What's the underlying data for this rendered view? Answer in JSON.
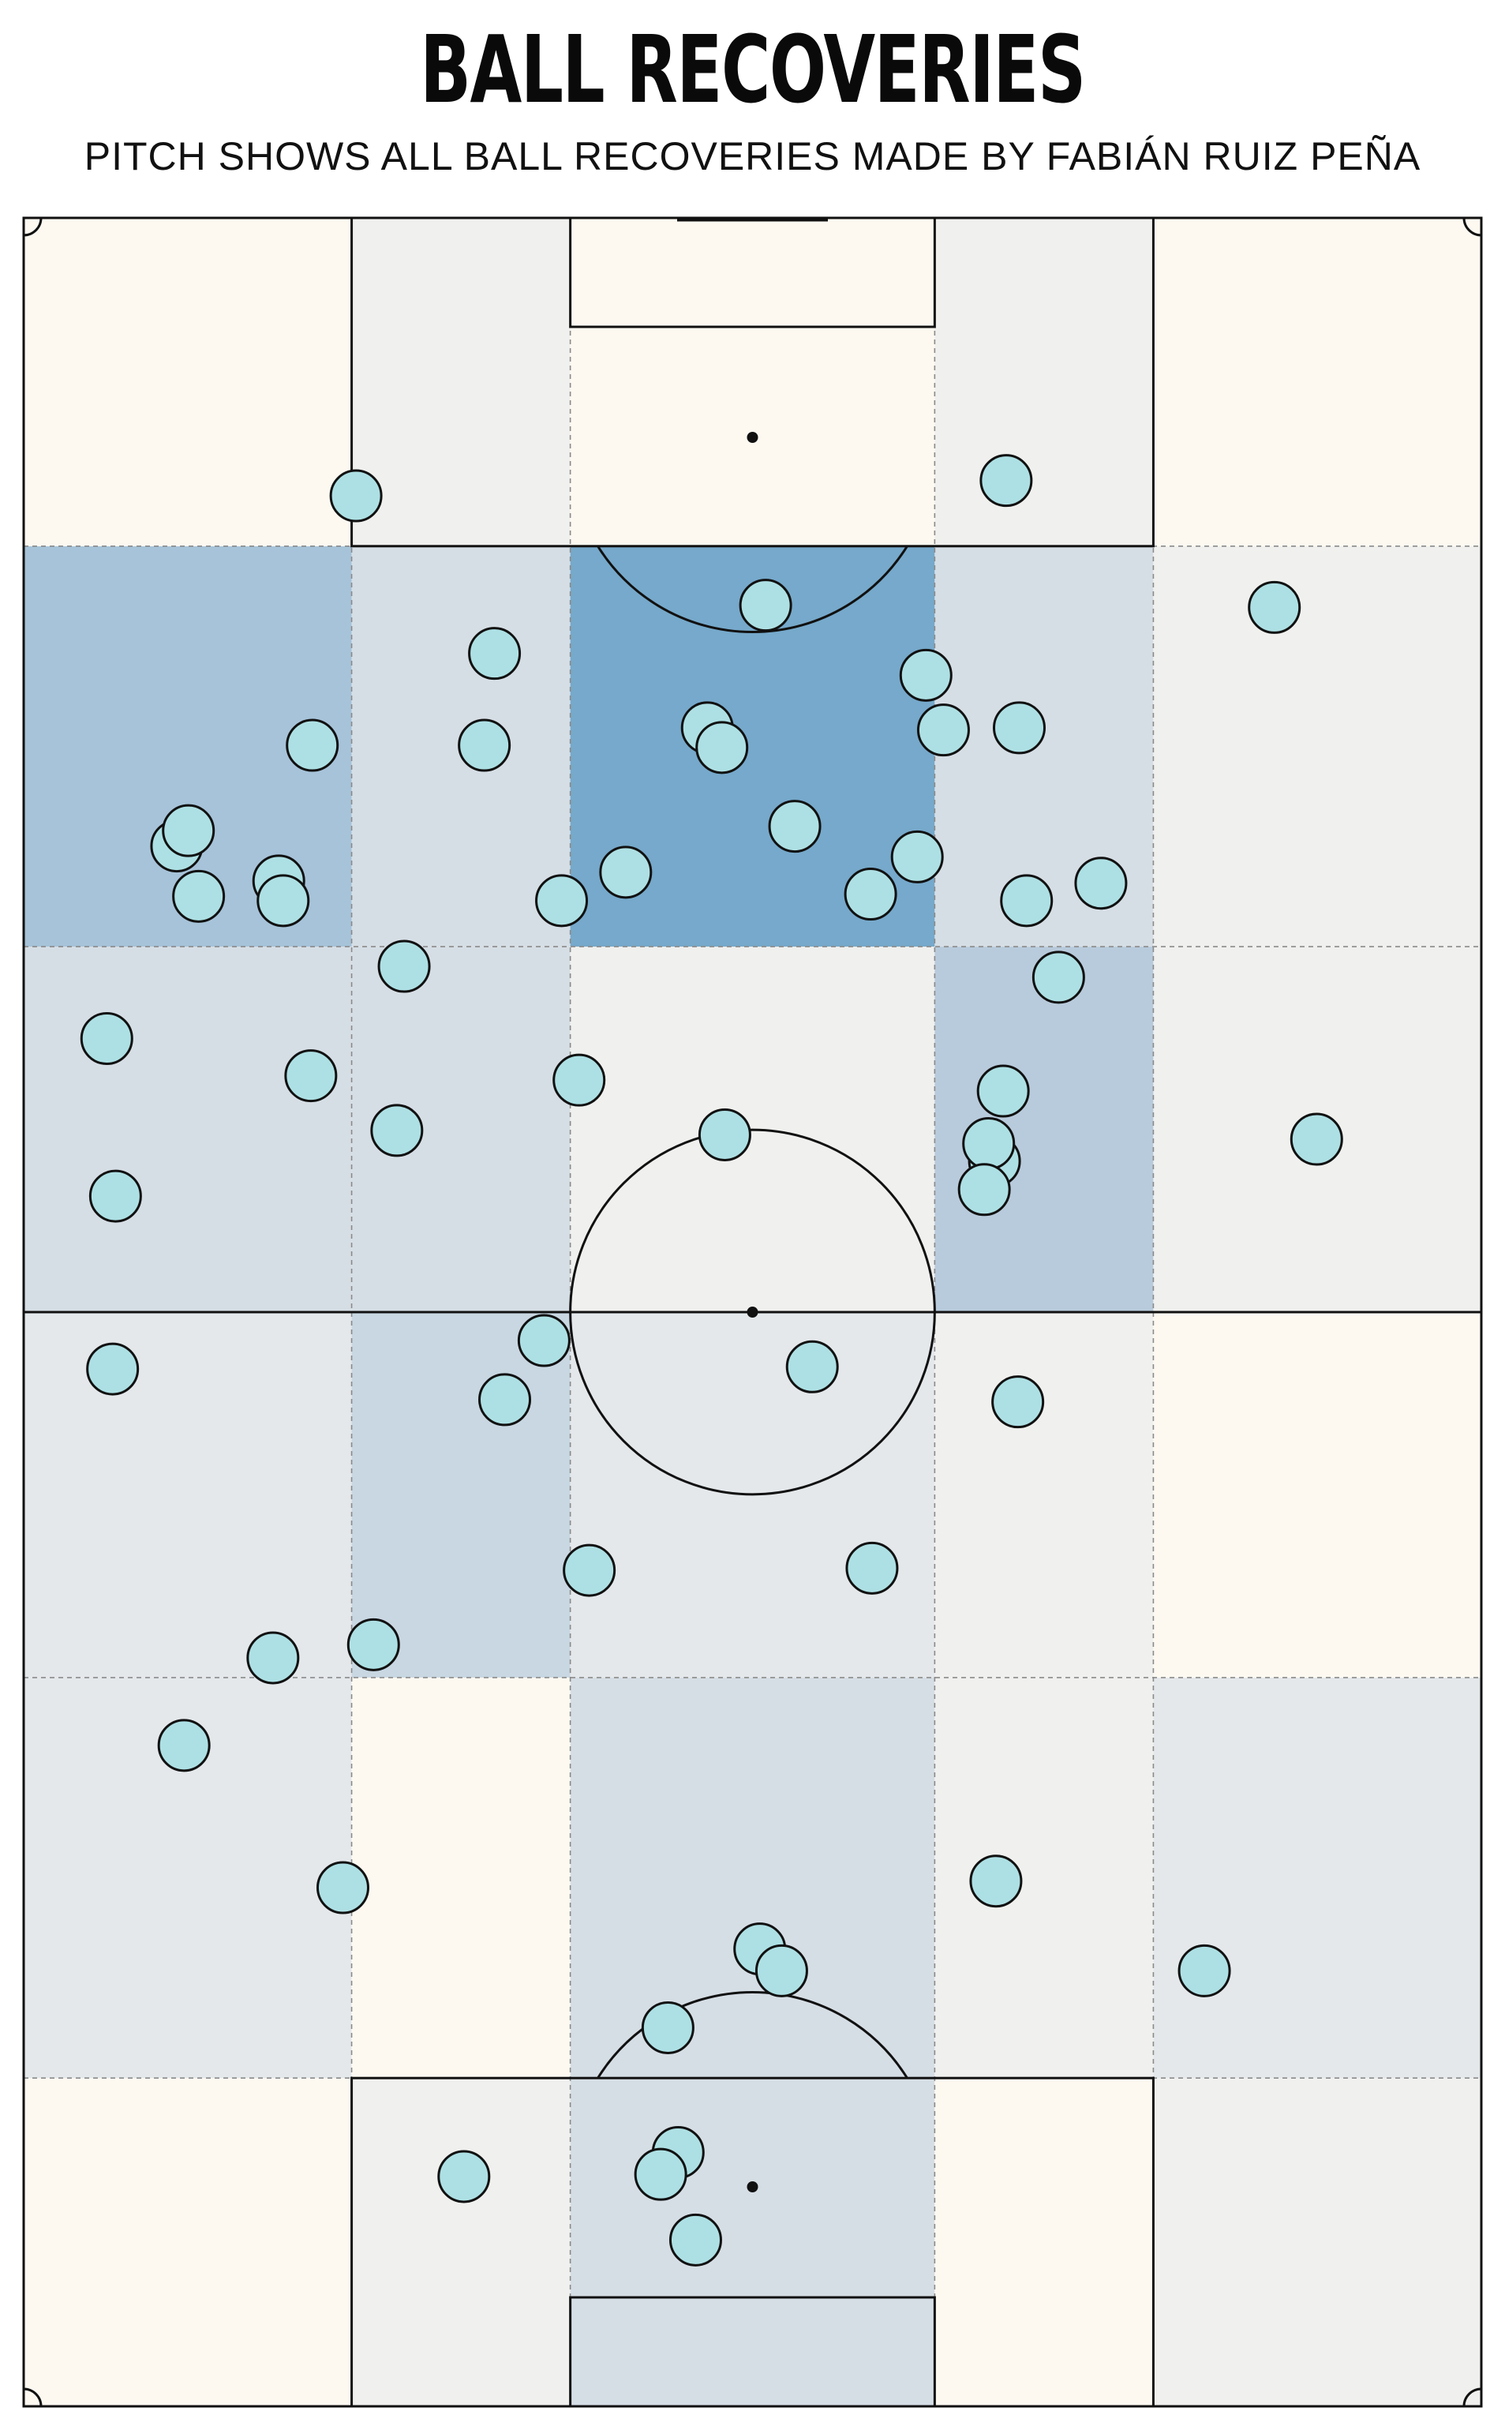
{
  "header": {
    "title": "BALL RECOVERIES",
    "subtitle": "PITCH SHOWS ALL BALL RECOVERIES MADE BY FABIÁN RUIZ PEÑA"
  },
  "colors": {
    "pitch_line": "#111111",
    "grid_line": "#8a8a8a",
    "marker_fill": "#ade0e4",
    "marker_stroke": "#111111",
    "heat_scale": [
      "#fdf9f1",
      "#f0f0ee",
      "#e4e8eb",
      "#d6dee5",
      "#c8d7e2",
      "#b8cbdc",
      "#a6c3d9",
      "#76a9cb"
    ]
  },
  "chart_data": {
    "type": "scatter",
    "description_units": "pitch coordinates: x 0-100 left to right, y 0-100 bottom (own goal) to top (opponent goal)",
    "xlim": [
      0,
      100
    ],
    "ylim": [
      0,
      100
    ],
    "zone_x_bounds": [
      0,
      22.5,
      37.5,
      62.5,
      77.5,
      100
    ],
    "zone_y_bounds": [
      0,
      15,
      33.3,
      50,
      66.7,
      85,
      100
    ],
    "zone_heat_levels": [
      [
        0,
        1,
        3,
        0,
        1
      ],
      [
        2,
        0,
        3,
        1,
        2
      ],
      [
        2,
        4,
        2,
        1,
        0
      ],
      [
        3,
        3,
        1,
        5,
        1
      ],
      [
        6,
        3,
        7,
        3,
        1
      ],
      [
        0,
        1,
        0,
        1,
        0
      ]
    ],
    "points": [
      {
        "x": 22.8,
        "y": 87.3
      },
      {
        "x": 67.4,
        "y": 88.0
      },
      {
        "x": 32.3,
        "y": 80.1
      },
      {
        "x": 50.9,
        "y": 82.3
      },
      {
        "x": 85.8,
        "y": 82.2
      },
      {
        "x": 19.8,
        "y": 75.9
      },
      {
        "x": 31.6,
        "y": 75.9
      },
      {
        "x": 46.9,
        "y": 76.7
      },
      {
        "x": 47.9,
        "y": 75.8
      },
      {
        "x": 61.9,
        "y": 79.1
      },
      {
        "x": 63.1,
        "y": 76.6
      },
      {
        "x": 68.3,
        "y": 76.7
      },
      {
        "x": 10.5,
        "y": 71.3
      },
      {
        "x": 11.3,
        "y": 72.0
      },
      {
        "x": 12.0,
        "y": 69.0
      },
      {
        "x": 17.5,
        "y": 69.7
      },
      {
        "x": 17.8,
        "y": 68.8
      },
      {
        "x": 36.9,
        "y": 68.8
      },
      {
        "x": 41.3,
        "y": 70.1
      },
      {
        "x": 52.9,
        "y": 72.2
      },
      {
        "x": 58.1,
        "y": 69.1
      },
      {
        "x": 61.3,
        "y": 70.8
      },
      {
        "x": 68.8,
        "y": 68.8
      },
      {
        "x": 73.9,
        "y": 69.6
      },
      {
        "x": 26.1,
        "y": 65.8
      },
      {
        "x": 71.0,
        "y": 65.3
      },
      {
        "x": 5.7,
        "y": 62.5
      },
      {
        "x": 19.7,
        "y": 60.8
      },
      {
        "x": 38.1,
        "y": 60.6
      },
      {
        "x": 67.2,
        "y": 60.1
      },
      {
        "x": 25.6,
        "y": 58.3
      },
      {
        "x": 48.1,
        "y": 58.1
      },
      {
        "x": 66.6,
        "y": 56.9
      },
      {
        "x": 66.2,
        "y": 57.7
      },
      {
        "x": 88.7,
        "y": 57.9
      },
      {
        "x": 6.3,
        "y": 55.3
      },
      {
        "x": 65.9,
        "y": 55.6
      },
      {
        "x": 6.1,
        "y": 47.4
      },
      {
        "x": 35.7,
        "y": 48.7
      },
      {
        "x": 33.0,
        "y": 46.0
      },
      {
        "x": 54.1,
        "y": 47.5
      },
      {
        "x": 68.2,
        "y": 45.9
      },
      {
        "x": 38.8,
        "y": 38.2
      },
      {
        "x": 58.2,
        "y": 38.3
      },
      {
        "x": 17.1,
        "y": 34.2
      },
      {
        "x": 24.0,
        "y": 34.8
      },
      {
        "x": 11.0,
        "y": 30.2
      },
      {
        "x": 21.9,
        "y": 23.7
      },
      {
        "x": 66.7,
        "y": 24.0
      },
      {
        "x": 50.5,
        "y": 20.9
      },
      {
        "x": 52.0,
        "y": 19.9
      },
      {
        "x": 81.0,
        "y": 19.9
      },
      {
        "x": 44.2,
        "y": 17.3
      },
      {
        "x": 44.9,
        "y": 11.6
      },
      {
        "x": 43.7,
        "y": 10.6
      },
      {
        "x": 30.2,
        "y": 10.5
      },
      {
        "x": 46.1,
        "y": 7.6
      }
    ]
  }
}
